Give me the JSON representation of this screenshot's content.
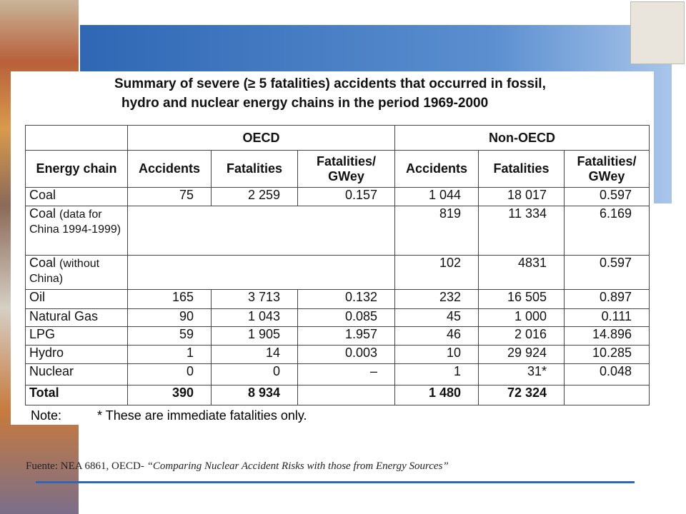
{
  "title": [
    "Summary of severe (≥ 5 fatalities) accidents that occurred in fossil,",
    "hydro and nuclear energy chains in the period 1969-2000"
  ],
  "table": {
    "groups": [
      "OECD",
      "Non-OECD"
    ],
    "first_header": "Energy chain",
    "columns": [
      "Accidents",
      "Fatalities",
      "Fatalities/ GWey"
    ],
    "rows": [
      {
        "label": "Coal",
        "oecd": [
          "75",
          "2 259",
          "0.157"
        ],
        "non_oecd": [
          "1 044",
          "18 017",
          "0.597"
        ]
      },
      {
        "label": "Coal",
        "note": "(data for China 1994-1999)",
        "oecd": null,
        "non_oecd": [
          "819",
          "11 334",
          "6.169"
        ]
      },
      {
        "label": "Coal",
        "note": "(without China)",
        "oecd": null,
        "non_oecd": [
          "102",
          "4831",
          "0.597"
        ]
      },
      {
        "label": "Oil",
        "oecd": [
          "165",
          "3 713",
          "0.132"
        ],
        "non_oecd": [
          "232",
          "16 505",
          "0.897"
        ]
      },
      {
        "label": "Natural Gas",
        "oecd": [
          "90",
          "1 043",
          "0.085"
        ],
        "non_oecd": [
          "45",
          "1 000",
          "0.111"
        ]
      },
      {
        "label": "LPG",
        "oecd": [
          "59",
          "1 905",
          "1.957"
        ],
        "non_oecd": [
          "46",
          "2 016",
          "14.896"
        ]
      },
      {
        "label": "Hydro",
        "oecd": [
          "1",
          "14",
          "0.003"
        ],
        "non_oecd": [
          "10",
          "29 924",
          "10.285"
        ]
      },
      {
        "label": "Nuclear",
        "oecd": [
          "0",
          "0",
          "–"
        ],
        "non_oecd": [
          "1",
          "31*",
          "0.048"
        ]
      },
      {
        "label": "Total",
        "oecd": [
          "390",
          "8 934",
          null
        ],
        "non_oecd": [
          "1 480",
          "72 324",
          null
        ],
        "bold": true
      }
    ]
  },
  "note": {
    "label": "Note:",
    "text": "* These are immediate fatalities only."
  },
  "source": {
    "prefix": "Fuente: NEA 6861, OECD- ",
    "title": "“Comparing Nuclear Accident Risks with those from Energy Sources”"
  }
}
